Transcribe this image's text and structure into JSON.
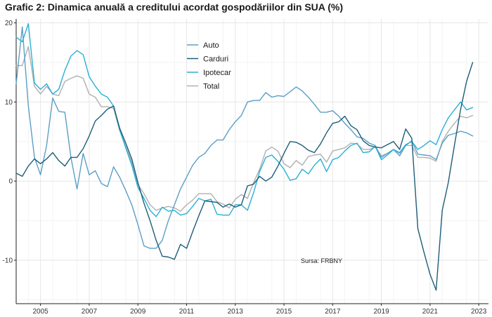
{
  "chart_data": {
    "type": "line",
    "title": "Grafic 2: Dinamica anuală a creditului acordat gospodăriilor din SUA (%)",
    "xlabel": "",
    "ylabel": "",
    "xlim": [
      2004.0,
      2023.4
    ],
    "ylim": [
      -15.5,
      20.5
    ],
    "x_ticks": [
      "2005",
      "2007",
      "2009",
      "2011",
      "2013",
      "2015",
      "2017",
      "2019",
      "2021",
      "2023"
    ],
    "y_ticks": [
      "-10",
      "0",
      "10",
      "20"
    ],
    "legend_position": "top-center",
    "source_note": "Sursa: FRBNY",
    "series": [
      {
        "name": "Auto",
        "color": "#5b9fc4",
        "x": [
          2004.0,
          2004.25,
          2004.5,
          2004.75,
          2005.0,
          2005.25,
          2005.5,
          2005.75,
          2006.0,
          2006.25,
          2006.5,
          2006.75,
          2007.0,
          2007.25,
          2007.5,
          2007.75,
          2008.0,
          2008.25,
          2008.5,
          2008.75,
          2009.0,
          2009.25,
          2009.5,
          2009.75,
          2010.0,
          2010.25,
          2010.5,
          2010.75,
          2011.0,
          2011.25,
          2011.5,
          2011.75,
          2012.0,
          2012.25,
          2012.5,
          2012.75,
          2013.0,
          2013.25,
          2013.5,
          2013.75,
          2014.0,
          2014.25,
          2014.5,
          2014.75,
          2015.0,
          2015.25,
          2015.5,
          2015.75,
          2016.0,
          2016.25,
          2016.5,
          2016.75,
          2017.0,
          2017.25,
          2017.5,
          2017.75,
          2018.0,
          2018.25,
          2018.5,
          2018.75,
          2019.0,
          2019.25,
          2019.5,
          2019.75,
          2020.0,
          2020.25,
          2020.5,
          2020.75,
          2021.0,
          2021.25,
          2021.5,
          2021.75,
          2022.0,
          2022.25,
          2022.5,
          2022.75
        ],
        "values": [
          12.3,
          19.5,
          9.5,
          3.0,
          0.8,
          4.5,
          10.5,
          8.8,
          8.7,
          3.0,
          -1.0,
          3.5,
          0.8,
          1.3,
          -0.3,
          -0.7,
          1.8,
          0.5,
          -1.2,
          -3.0,
          -5.5,
          -8.2,
          -8.5,
          -8.5,
          -7.5,
          -5.0,
          -3.0,
          -1.0,
          0.5,
          2.0,
          3.0,
          3.5,
          4.5,
          5.2,
          5.2,
          6.5,
          7.5,
          8.3,
          10.0,
          10.2,
          10.2,
          11.2,
          10.6,
          10.8,
          10.7,
          11.3,
          11.9,
          11.4,
          10.6,
          9.7,
          8.7,
          8.7,
          8.9,
          8.2,
          7.3,
          6.5,
          5.6,
          5.4,
          4.8,
          4.5,
          3.0,
          3.5,
          4.0,
          3.2,
          4.5,
          5.1,
          3.4,
          3.3,
          3.2,
          2.7,
          4.8,
          5.8,
          6.0,
          6.3,
          6.1,
          5.7
        ]
      },
      {
        "name": "Carduri",
        "color": "#1d5e79",
        "x": [
          2004.0,
          2004.25,
          2004.5,
          2004.75,
          2005.0,
          2005.25,
          2005.5,
          2005.75,
          2006.0,
          2006.25,
          2006.5,
          2006.75,
          2007.0,
          2007.25,
          2007.5,
          2007.75,
          2008.0,
          2008.25,
          2008.5,
          2008.75,
          2009.0,
          2009.25,
          2009.5,
          2009.75,
          2010.0,
          2010.25,
          2010.5,
          2010.75,
          2011.0,
          2011.25,
          2011.5,
          2011.75,
          2012.0,
          2012.25,
          2012.5,
          2012.75,
          2013.0,
          2013.25,
          2013.5,
          2013.75,
          2014.0,
          2014.25,
          2014.5,
          2014.75,
          2015.0,
          2015.25,
          2015.5,
          2015.75,
          2016.0,
          2016.25,
          2016.5,
          2016.75,
          2017.0,
          2017.25,
          2017.5,
          2017.75,
          2018.0,
          2018.25,
          2018.5,
          2018.75,
          2019.0,
          2019.25,
          2019.5,
          2019.75,
          2020.0,
          2020.25,
          2020.5,
          2020.75,
          2021.0,
          2021.25,
          2021.5,
          2021.75,
          2022.0,
          2022.25,
          2022.5,
          2022.75
        ],
        "values": [
          1.0,
          0.6,
          1.9,
          2.8,
          2.2,
          2.8,
          3.6,
          2.6,
          1.9,
          3.0,
          3.0,
          4.1,
          5.7,
          7.6,
          8.3,
          9.1,
          9.5,
          6.7,
          4.8,
          2.8,
          -0.2,
          -2.8,
          -5.0,
          -7.5,
          -9.5,
          -9.6,
          -9.9,
          -8.0,
          -8.5,
          -6.4,
          -4.4,
          -2.5,
          -2.6,
          -2.7,
          -3.3,
          -2.9,
          -3.3,
          -3.0,
          -0.6,
          -0.4,
          0.6,
          0.0,
          0.5,
          1.9,
          3.5,
          5.0,
          4.9,
          4.5,
          3.9,
          3.6,
          4.7,
          6.1,
          7.3,
          7.5,
          8.2,
          7.0,
          6.5,
          5.1,
          4.5,
          4.3,
          4.2,
          4.6,
          5.0,
          4.0,
          6.6,
          5.4,
          -6.0,
          -9.0,
          -11.8,
          -13.8,
          -3.7,
          -0.2,
          4.5,
          9.0,
          12.6,
          15.0
        ]
      },
      {
        "name": "Ipotecar",
        "color": "#27b0d6",
        "x": [
          2004.0,
          2004.25,
          2004.5,
          2004.75,
          2005.0,
          2005.25,
          2005.5,
          2005.75,
          2006.0,
          2006.25,
          2006.5,
          2006.75,
          2007.0,
          2007.25,
          2007.5,
          2007.75,
          2008.0,
          2008.25,
          2008.5,
          2008.75,
          2009.0,
          2009.25,
          2009.5,
          2009.75,
          2010.0,
          2010.25,
          2010.5,
          2010.75,
          2011.0,
          2011.25,
          2011.5,
          2011.75,
          2012.0,
          2012.25,
          2012.5,
          2012.75,
          2013.0,
          2013.25,
          2013.5,
          2013.75,
          2014.0,
          2014.25,
          2014.5,
          2014.75,
          2015.0,
          2015.25,
          2015.5,
          2015.75,
          2016.0,
          2016.25,
          2016.5,
          2016.75,
          2017.0,
          2017.25,
          2017.5,
          2017.75,
          2018.0,
          2018.25,
          2018.5,
          2018.75,
          2019.0,
          2019.25,
          2019.5,
          2019.75,
          2020.0,
          2020.25,
          2020.5,
          2020.75,
          2021.0,
          2021.25,
          2021.5,
          2021.75,
          2022.0,
          2022.25,
          2022.5,
          2022.75
        ],
        "values": [
          18.2,
          17.6,
          19.9,
          12.4,
          11.6,
          12.3,
          11.0,
          11.6,
          14.0,
          15.8,
          16.5,
          16.0,
          13.2,
          12.0,
          11.0,
          10.6,
          9.5,
          6.5,
          4.2,
          2.0,
          -0.8,
          -2.2,
          -3.7,
          -4.5,
          -3.3,
          -3.8,
          -3.7,
          -4.3,
          -4.1,
          -3.2,
          -2.2,
          -2.5,
          -2.3,
          -4.2,
          -4.3,
          -4.3,
          -3.0,
          -3.0,
          -3.7,
          -1.5,
          1.2,
          3.0,
          3.3,
          2.5,
          1.5,
          0.1,
          0.3,
          1.5,
          0.9,
          2.0,
          2.8,
          1.2,
          2.7,
          3.0,
          3.8,
          4.5,
          4.8,
          3.6,
          3.7,
          4.4,
          2.7,
          3.3,
          4.0,
          3.6,
          4.6,
          5.0,
          4.0,
          4.5,
          5.1,
          4.6,
          6.5,
          8.0,
          9.0,
          10.0,
          9.0,
          9.3
        ]
      },
      {
        "name": "Total",
        "color": "#b0b0b0",
        "x": [
          2004.0,
          2004.25,
          2004.5,
          2004.75,
          2005.0,
          2005.25,
          2005.5,
          2005.75,
          2006.0,
          2006.25,
          2006.5,
          2006.75,
          2007.0,
          2007.25,
          2007.5,
          2007.75,
          2008.0,
          2008.25,
          2008.5,
          2008.75,
          2009.0,
          2009.25,
          2009.5,
          2009.75,
          2010.0,
          2010.25,
          2010.5,
          2010.75,
          2011.0,
          2011.25,
          2011.5,
          2011.75,
          2012.0,
          2012.25,
          2012.5,
          2012.75,
          2013.0,
          2013.25,
          2013.5,
          2013.75,
          2014.0,
          2014.25,
          2014.5,
          2014.75,
          2015.0,
          2015.25,
          2015.5,
          2015.75,
          2016.0,
          2016.25,
          2016.5,
          2016.75,
          2017.0,
          2017.25,
          2017.5,
          2017.75,
          2018.0,
          2018.25,
          2018.5,
          2018.75,
          2019.0,
          2019.25,
          2019.5,
          2019.75,
          2020.0,
          2020.25,
          2020.5,
          2020.75,
          2021.0,
          2021.25,
          2021.5,
          2021.75,
          2022.0,
          2022.25,
          2022.5,
          2022.75
        ],
        "values": [
          14.6,
          14.6,
          17.0,
          12.0,
          11.0,
          12.0,
          11.0,
          10.8,
          12.6,
          13.0,
          13.3,
          13.0,
          11.0,
          10.6,
          9.4,
          9.4,
          9.2,
          6.4,
          4.4,
          2.4,
          -0.4,
          -1.6,
          -3.0,
          -3.7,
          -3.4,
          -3.2,
          -3.4,
          -3.8,
          -3.0,
          -2.4,
          -1.6,
          -1.6,
          -1.6,
          -2.6,
          -2.9,
          -3.4,
          -2.3,
          -1.7,
          -2.2,
          -0.2,
          1.5,
          3.8,
          4.3,
          3.8,
          2.2,
          1.7,
          2.6,
          2.0,
          3.1,
          3.3,
          3.4,
          2.4,
          3.8,
          4.0,
          4.2,
          4.8,
          4.7,
          4.0,
          4.0,
          4.3,
          3.2,
          3.5,
          4.0,
          3.5,
          4.5,
          4.5,
          3.0,
          3.0,
          2.9,
          2.5,
          5.0,
          6.3,
          7.3,
          8.2,
          8.0,
          8.3
        ]
      }
    ]
  }
}
